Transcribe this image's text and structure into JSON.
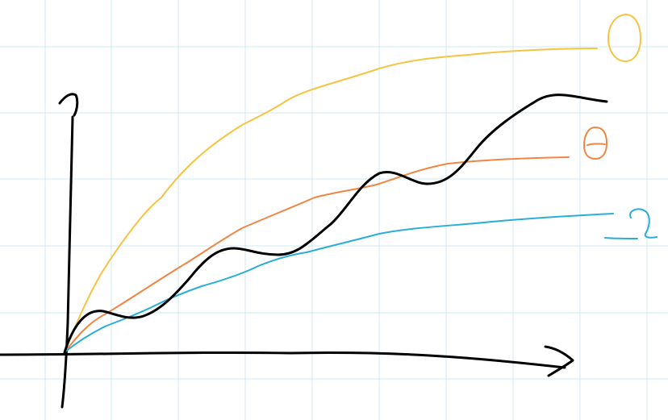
{
  "sketch": {
    "paper": {
      "background": "#ffffff",
      "grid_color": "#cfe9f0"
    },
    "axes": {
      "color": "#000000"
    },
    "curves": [
      {
        "id": "curve-yellow",
        "color": "#f6c343"
      },
      {
        "id": "curve-black",
        "color": "#000000"
      },
      {
        "id": "curve-orange",
        "color": "#ef8643"
      },
      {
        "id": "curve-blue",
        "color": "#2aaed8"
      }
    ],
    "symbols": [
      {
        "id": "symbol-yellow-ring",
        "color": "#f6c343",
        "icon": "handwritten-zero-glyph"
      },
      {
        "id": "symbol-orange-theta",
        "color": "#ef8643",
        "icon": "handwritten-theta-glyph"
      },
      {
        "id": "symbol-blue-squiggle",
        "color": "#2aaed8",
        "icon": "handwritten-loop-glyph"
      }
    ]
  }
}
